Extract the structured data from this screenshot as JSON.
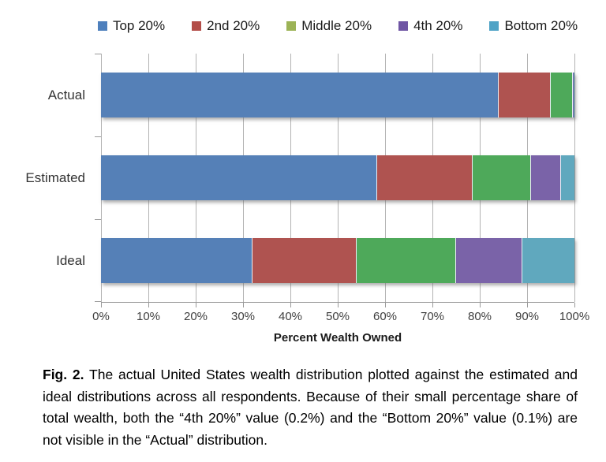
{
  "chart_data": {
    "type": "bar",
    "variant": "horizontal-stacked",
    "categories": [
      "Actual",
      "Estimated",
      "Ideal"
    ],
    "series": [
      {
        "name": "Top 20%",
        "color": "#5580B7",
        "legend_color": "#4E80BD",
        "values": [
          84.4,
          58.5,
          32.0
        ]
      },
      {
        "name": "2nd 20%",
        "color": "#AF5350",
        "legend_color": "#B34D48",
        "values": [
          11.0,
          20.2,
          22.0
        ]
      },
      {
        "name": "Middle 20%",
        "color": "#4EA95A",
        "legend_color": "#9CB356",
        "values": [
          4.5,
          12.2,
          21.0
        ]
      },
      {
        "name": "4th 20%",
        "color": "#7A63A8",
        "legend_color": "#6F55A4",
        "values": [
          0.2,
          6.3,
          14.0
        ]
      },
      {
        "name": "Bottom 20%",
        "color": "#60A8BE",
        "legend_color": "#4FA3C6",
        "values": [
          0.1,
          2.8,
          11.0
        ]
      }
    ],
    "xlabel": "Percent Wealth Owned",
    "x_ticks": [
      "0%",
      "10%",
      "20%",
      "30%",
      "40%",
      "50%",
      "60%",
      "70%",
      "80%",
      "90%",
      "100%"
    ],
    "xlim": [
      0,
      100
    ],
    "grid": "vertical-only",
    "legend_position": "top",
    "grid_color": "#b3b3b3",
    "axis_color": "#9a9a9a"
  },
  "caption": {
    "fig_label": "Fig. 2.",
    "text": " The actual United States wealth distribution plotted against the estimated and ideal distributions across all respondents. Because of their small percentage share of total wealth, both the “4th 20%” value (0.2%) and the “Bottom 20%” value (0.1%) are not visible in the “Actual” distribution."
  }
}
